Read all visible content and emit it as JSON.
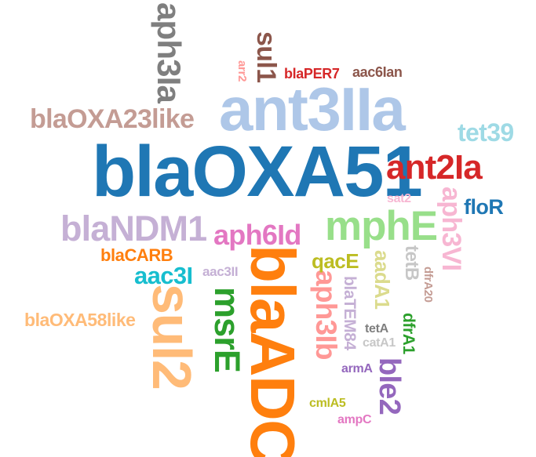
{
  "words": [
    {
      "text": "blaOXA51",
      "color": "#1f77b4"
    },
    {
      "text": "ant3IIa",
      "color": "#aec7e8"
    },
    {
      "text": "blaADC",
      "color": "#ff7f0e"
    },
    {
      "text": "sul2",
      "color": "#ffbb78"
    },
    {
      "text": "mphE",
      "color": "#98df8a"
    },
    {
      "text": "blaNDM1",
      "color": "#c5b0d5"
    },
    {
      "text": "ant2Ia",
      "color": "#d62728"
    },
    {
      "text": "msrE",
      "color": "#2ca02c"
    },
    {
      "text": "aph6Id",
      "color": "#e377c2"
    },
    {
      "text": "aph3Ia",
      "color": "#7f7f7f"
    },
    {
      "text": "blaOXA23like",
      "color": "#c49c94"
    },
    {
      "text": "aph3Ib",
      "color": "#ff9896"
    },
    {
      "text": "aph3VI",
      "color": "#f7b6d2"
    },
    {
      "text": "ble2",
      "color": "#9467bd"
    },
    {
      "text": "sul1",
      "color": "#8c564b"
    },
    {
      "text": "aac3I",
      "color": "#17becf"
    },
    {
      "text": "floR",
      "color": "#1f77b4"
    },
    {
      "text": "tet39",
      "color": "#9edae5"
    },
    {
      "text": "qacE",
      "color": "#bcbd22"
    },
    {
      "text": "aadA1",
      "color": "#dbdb8d"
    },
    {
      "text": "blaOXA58like",
      "color": "#ffbb78"
    },
    {
      "text": "blaCARB",
      "color": "#ff7f0e"
    },
    {
      "text": "tetB",
      "color": "#c7c7c7"
    },
    {
      "text": "blaTEM84",
      "color": "#c5b0d5"
    },
    {
      "text": "dfrA1",
      "color": "#2ca02c"
    },
    {
      "text": "blaPER7",
      "color": "#d62728"
    },
    {
      "text": "aac6Ian",
      "color": "#8c564b"
    },
    {
      "text": "arr2",
      "color": "#ff9896"
    },
    {
      "text": "sat2",
      "color": "#f7b6d2"
    },
    {
      "text": "aac3II",
      "color": "#c5b0d5"
    },
    {
      "text": "dfrA20",
      "color": "#c49c94"
    },
    {
      "text": "tetA",
      "color": "#7f7f7f"
    },
    {
      "text": "catA1",
      "color": "#c7c7c7"
    },
    {
      "text": "armA",
      "color": "#9467bd"
    },
    {
      "text": "cmlA5",
      "color": "#bcbd22"
    },
    {
      "text": "ampC",
      "color": "#e377c2"
    }
  ]
}
